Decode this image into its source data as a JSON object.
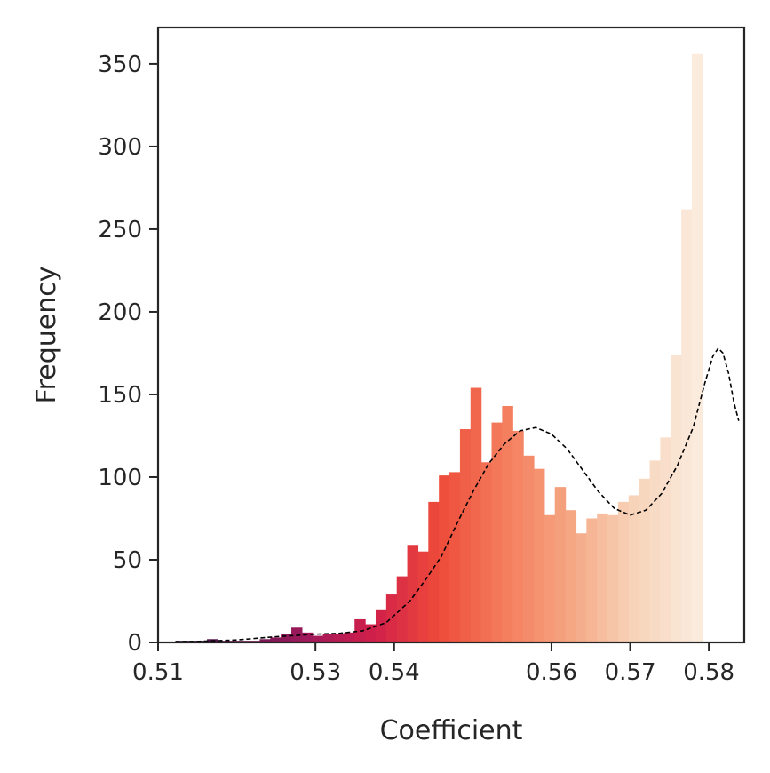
{
  "chart_data": {
    "type": "bar",
    "title": "",
    "xlabel": "Coefficient",
    "ylabel": "Frequency",
    "xlim": [
      0.51,
      0.5845
    ],
    "ylim": [
      0,
      372
    ],
    "x_ticks": [
      0.51,
      0.53,
      0.54,
      0.56,
      0.57,
      0.58
    ],
    "x_tick_labels": [
      "0.51",
      "0.53",
      "0.54",
      "0.56",
      "0.57",
      "0.58"
    ],
    "y_ticks": [
      0,
      50,
      100,
      150,
      200,
      250,
      300,
      350
    ],
    "y_tick_labels": [
      "0",
      "50",
      "100",
      "150",
      "200",
      "250",
      "300",
      "350"
    ],
    "grid": false,
    "bin_start": 0.5122,
    "bin_width": 0.0013396,
    "values": [
      1,
      1,
      1,
      2,
      1,
      1,
      1,
      1,
      2,
      3,
      5,
      9,
      6,
      4,
      5,
      5,
      6,
      14,
      11,
      20,
      29,
      40,
      59,
      55,
      85,
      101,
      103,
      129,
      154,
      109,
      133,
      143,
      128,
      113,
      105,
      77,
      94,
      80,
      66,
      75,
      78,
      77,
      85,
      89,
      99,
      110,
      124,
      174,
      262,
      356
    ],
    "curve": {
      "style": "dashed",
      "color": "#000000",
      "points": [
        [
          0.5122,
          0.5
        ],
        [
          0.515,
          0.6
        ],
        [
          0.52,
          1.5
        ],
        [
          0.525,
          3.5
        ],
        [
          0.53,
          5
        ],
        [
          0.533,
          5.5
        ],
        [
          0.536,
          7
        ],
        [
          0.539,
          12
        ],
        [
          0.542,
          25
        ],
        [
          0.544,
          38
        ],
        [
          0.546,
          52
        ],
        [
          0.548,
          72
        ],
        [
          0.55,
          91
        ],
        [
          0.552,
          108
        ],
        [
          0.554,
          120
        ],
        [
          0.556,
          128
        ],
        [
          0.558,
          130
        ],
        [
          0.56,
          126
        ],
        [
          0.562,
          117
        ],
        [
          0.564,
          104
        ],
        [
          0.566,
          91
        ],
        [
          0.568,
          81
        ],
        [
          0.57,
          77
        ],
        [
          0.572,
          80
        ],
        [
          0.574,
          90
        ],
        [
          0.576,
          107
        ],
        [
          0.578,
          130
        ],
        [
          0.5795,
          157
        ],
        [
          0.5805,
          173
        ],
        [
          0.5812,
          178
        ],
        [
          0.5818,
          175
        ],
        [
          0.5825,
          163
        ],
        [
          0.5832,
          145
        ],
        [
          0.5838,
          134
        ]
      ]
    },
    "colormap_stops": [
      "#3b0f4a",
      "#6b1752",
      "#a3195b",
      "#d11f4a",
      "#ee4b3a",
      "#f47c5c",
      "#f5a582",
      "#f7d2b8",
      "#faebdd"
    ]
  }
}
